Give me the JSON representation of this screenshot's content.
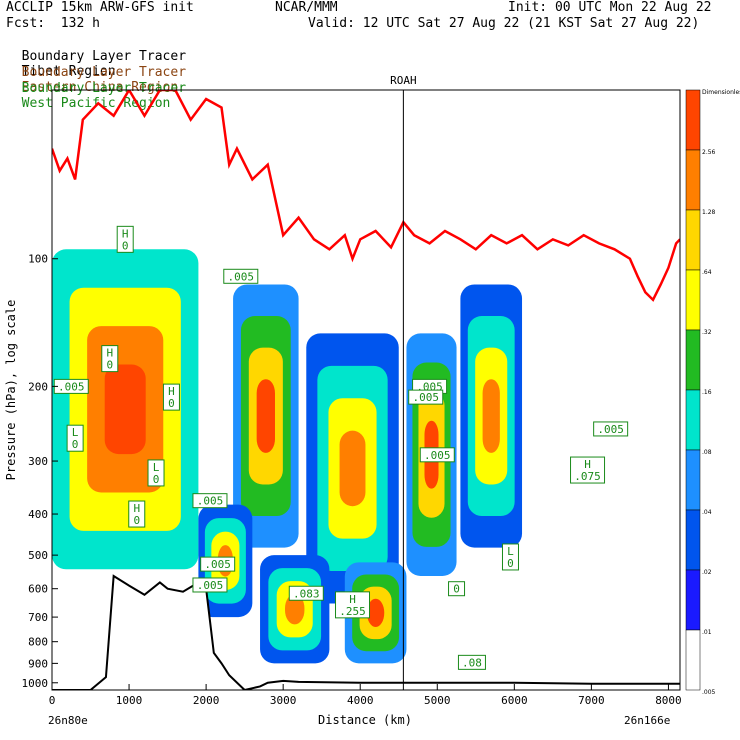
{
  "header": {
    "left_line1": "ACCLIP 15km ARW-GFS init",
    "center_line1": "NCAR/MMM",
    "right_line1": "Init: 00 UTC Mon 22 Aug 22",
    "left_line2": "Fcst:  132 h",
    "right_line2": "Valid: 12 UTC Sat 27 Aug 22 (21 KST Sat 27 Aug 22)"
  },
  "legend": [
    {
      "prefix": "Boundary Layer Tracer",
      "region": "Tibet Region",
      "color": "#000000"
    },
    {
      "prefix": "Boundary Layer Tracer",
      "region": "Eastern China Region",
      "color": "#8b4513"
    },
    {
      "prefix": "Boundary Layer Tracer",
      "region": "West Pacific Region",
      "color": "#1a8a1a"
    }
  ],
  "chart_data": {
    "type": "cross-section",
    "xlabel": "Distance (km)",
    "ylabel": "Pressure (hPa), log scale",
    "xticks": [
      0,
      1000,
      2000,
      3000,
      4000,
      5000,
      6000,
      7000,
      8000
    ],
    "xlim": [
      0,
      8150
    ],
    "yticks": [
      100,
      200,
      300,
      400,
      500,
      600,
      700,
      800,
      900,
      1000
    ],
    "ylim": [
      1040,
      40
    ],
    "yscale": "log",
    "left_endpoint": "26n80e",
    "right_endpoint": "26n166e",
    "station": {
      "label": "ROAH",
      "x": 4560
    },
    "colorbar": {
      "labels": [
        "Dimensionless",
        "2.56",
        "1.28",
        ".64",
        ".32",
        ".16",
        ".08",
        ".04",
        ".02",
        ".01",
        ".005"
      ],
      "colors": [
        "#ff4500",
        "#ff7f00",
        "#ffd700",
        "#ffff00",
        "#22bb22",
        "#00e5cc",
        "#1e90ff",
        "#0055ee",
        "#1a1aff",
        "#ffffff"
      ]
    },
    "tropopause": {
      "color": "#ff0000",
      "x": [
        0,
        100,
        200,
        300,
        400,
        600,
        800,
        1000,
        1200,
        1400,
        1600,
        1800,
        2000,
        2200,
        2300,
        2400,
        2600,
        2800,
        3000,
        3200,
        3400,
        3600,
        3800,
        3900,
        4000,
        4200,
        4400,
        4560,
        4700,
        4900,
        5100,
        5300,
        5500,
        5700,
        5900,
        6100,
        6300,
        6500,
        6700,
        6900,
        7100,
        7300,
        7500,
        7600,
        7700,
        7800,
        7900,
        8000,
        8100,
        8150
      ],
      "p": [
        55,
        62,
        58,
        65,
        47,
        43,
        46,
        40,
        46,
        40,
        40,
        47,
        42,
        44,
        60,
        55,
        65,
        60,
        88,
        80,
        90,
        95,
        88,
        100,
        90,
        86,
        94,
        82,
        88,
        92,
        86,
        90,
        95,
        88,
        92,
        88,
        95,
        90,
        93,
        88,
        92,
        95,
        100,
        110,
        120,
        125,
        115,
        105,
        92,
        90
      ]
    },
    "terrain": {
      "x": [
        0,
        300,
        500,
        700,
        800,
        1000,
        1200,
        1400,
        1500,
        1700,
        1900,
        2000,
        2100,
        2200,
        2300,
        2500,
        2700,
        2800,
        3000,
        3200,
        4000,
        5000,
        6000,
        7000,
        8000,
        8150
      ],
      "p": [
        1040,
        1040,
        1040,
        970,
        560,
        590,
        620,
        580,
        600,
        610,
        580,
        600,
        850,
        900,
        960,
        1040,
        1020,
        1000,
        990,
        995,
        1000,
        1000,
        1000,
        1005,
        1005,
        1005
      ]
    },
    "tracer_labels": [
      {
        "text": "H",
        "value": "0",
        "x": 950,
        "p": 90
      },
      {
        "text": "H",
        "value": "0",
        "x": 750,
        "p": 172
      },
      {
        "text": "H",
        "value": "0",
        "x": 1550,
        "p": 212
      },
      {
        "text": "L",
        "value": "0",
        "x": 300,
        "p": 265
      },
      {
        "text": "L",
        "value": "0",
        "x": 1350,
        "p": 320
      },
      {
        "text": "H",
        "value": "0",
        "x": 1100,
        "p": 400
      },
      {
        "text": "",
        "value": ".005",
        "x": 250,
        "p": 200
      },
      {
        "text": "",
        "value": ".005",
        "x": 2450,
        "p": 110
      },
      {
        "text": "",
        "value": ".005",
        "x": 2050,
        "p": 372
      },
      {
        "text": "",
        "value": ".005",
        "x": 2050,
        "p": 588
      },
      {
        "text": "",
        "value": ".005",
        "x": 2150,
        "p": 525
      },
      {
        "text": "",
        "value": ".005",
        "x": 4900,
        "p": 200
      },
      {
        "text": "",
        "value": ".005",
        "x": 4850,
        "p": 212
      },
      {
        "text": "",
        "value": ".005",
        "x": 5000,
        "p": 290
      },
      {
        "text": "",
        "value": ".005",
        "x": 7250,
        "p": 252
      },
      {
        "text": "H",
        "value": ".075",
        "x": 6950,
        "p": 315
      },
      {
        "text": "",
        "value": ".083",
        "x": 3300,
        "p": 615
      },
      {
        "text": "H",
        "value": ".255",
        "x": 3900,
        "p": 655
      },
      {
        "text": "L",
        "value": "0",
        "x": 5950,
        "p": 505
      },
      {
        "text": "",
        "value": "0",
        "x": 5250,
        "p": 600
      },
      {
        "text": "",
        "value": ".08",
        "x": 5450,
        "p": 895
      }
    ]
  }
}
